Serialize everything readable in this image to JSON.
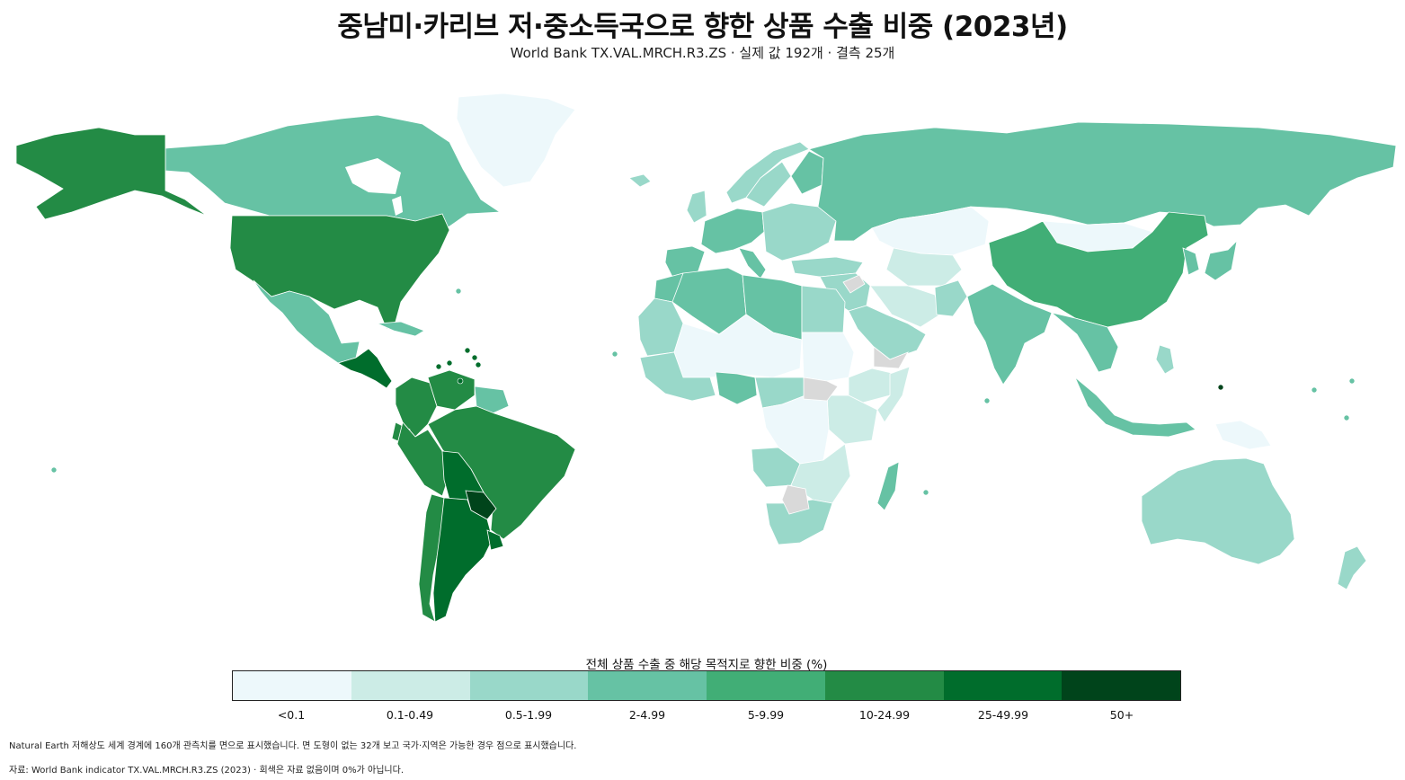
{
  "title": "중남미·카리브 저·중소득국으로 향한 상품 수출 비중 (2023년)",
  "subtitle": "World Bank TX.VAL.MRCH.R3.ZS · 실제 값 192개 · 결측 25개",
  "legend": {
    "title": "전체 상품 수출 중 해당 목적지로 향한 비중 (%)",
    "bins": [
      {
        "label": "<0.1",
        "color": "#edf8fb"
      },
      {
        "label": "0.1-0.49",
        "color": "#ccece6"
      },
      {
        "label": "0.5-1.99",
        "color": "#99d8c9"
      },
      {
        "label": "2-4.99",
        "color": "#66c2a4"
      },
      {
        "label": "5-9.99",
        "color": "#41ae76"
      },
      {
        "label": "10-24.99",
        "color": "#238b45"
      },
      {
        "label": "25-49.99",
        "color": "#006d2c"
      },
      {
        "label": "50+",
        "color": "#00441b"
      }
    ],
    "missing_color": "#d9d9d9"
  },
  "footnote_1": "Natural Earth 저해상도 세계 경계에 160개 관측치를 면으로 표시했습니다. 면 도형이 없는 32개 보고 국가·지역은 가능한 경우 점으로 표시했습니다.",
  "footnote_2": "자료: World Bank indicator TX.VAL.MRCH.R3.ZS (2023) · 회색은 자료 없음이며 0%가 아닙니다.",
  "map": {
    "projection": "equirectangular",
    "regions": [
      {
        "name": "Alaska (USA)",
        "bin": 5
      },
      {
        "name": "Canada",
        "bin": 3
      },
      {
        "name": "Greenland",
        "bin": 0
      },
      {
        "name": "United States",
        "bin": 5
      },
      {
        "name": "Mexico",
        "bin": 3
      },
      {
        "name": "Central America",
        "bin": 6
      },
      {
        "name": "Cuba",
        "bin": 3
      },
      {
        "name": "Colombia",
        "bin": 5
      },
      {
        "name": "Venezuela",
        "bin": 5
      },
      {
        "name": "Guianas",
        "bin": 3
      },
      {
        "name": "Ecuador",
        "bin": 5
      },
      {
        "name": "Peru",
        "bin": 5
      },
      {
        "name": "Brazil",
        "bin": 5
      },
      {
        "name": "Bolivia",
        "bin": 6
      },
      {
        "name": "Paraguay",
        "bin": 7
      },
      {
        "name": "Chile",
        "bin": 5
      },
      {
        "name": "Argentina",
        "bin": 6
      },
      {
        "name": "Uruguay",
        "bin": 6
      },
      {
        "name": "Iceland",
        "bin": 2
      },
      {
        "name": "Norway",
        "bin": 2
      },
      {
        "name": "Sweden",
        "bin": 2
      },
      {
        "name": "Finland",
        "bin": 3
      },
      {
        "name": "United Kingdom",
        "bin": 2
      },
      {
        "name": "Western Europe",
        "bin": 3
      },
      {
        "name": "Iberia",
        "bin": 3
      },
      {
        "name": "Italy",
        "bin": 3
      },
      {
        "name": "Eastern Europe",
        "bin": 2
      },
      {
        "name": "Russia",
        "bin": 3
      },
      {
        "name": "Kazakhstan",
        "bin": 0
      },
      {
        "name": "Mongolia",
        "bin": 0
      },
      {
        "name": "China",
        "bin": 4
      },
      {
        "name": "Korea",
        "bin": 3
      },
      {
        "name": "Japan",
        "bin": 3
      },
      {
        "name": "Turkey",
        "bin": 2
      },
      {
        "name": "Central Asia",
        "bin": 1
      },
      {
        "name": "Middle East",
        "bin": 2
      },
      {
        "name": "Arabian Peninsula",
        "bin": 2
      },
      {
        "name": "Iran",
        "bin": 1
      },
      {
        "name": "Pakistan",
        "bin": 2
      },
      {
        "name": "India",
        "bin": 3
      },
      {
        "name": "Southeast Asia",
        "bin": 3
      },
      {
        "name": "Indonesia",
        "bin": 3
      },
      {
        "name": "Papua New Guinea",
        "bin": 0
      },
      {
        "name": "Philippines",
        "bin": 2
      },
      {
        "name": "Australia",
        "bin": 2
      },
      {
        "name": "New Zealand",
        "bin": 2
      },
      {
        "name": "Morocco",
        "bin": 3
      },
      {
        "name": "Algeria",
        "bin": 3
      },
      {
        "name": "Libya",
        "bin": 3
      },
      {
        "name": "Egypt",
        "bin": 2
      },
      {
        "name": "Mauritania",
        "bin": 2
      },
      {
        "name": "Sahel",
        "bin": 0
      },
      {
        "name": "Sudan",
        "bin": 0
      },
      {
        "name": "West Africa coast",
        "bin": 2
      },
      {
        "name": "Nigeria",
        "bin": 3
      },
      {
        "name": "Central Africa",
        "bin": 2
      },
      {
        "name": "Ethiopia",
        "bin": 1
      },
      {
        "name": "East Africa",
        "bin": 1
      },
      {
        "name": "DR Congo",
        "bin": 0
      },
      {
        "name": "Angola",
        "bin": 2
      },
      {
        "name": "Southern Africa",
        "bin": 1
      },
      {
        "name": "South Africa",
        "bin": 2
      },
      {
        "name": "Madagascar",
        "bin": 3
      },
      {
        "name": "Somalia",
        "bin": 1
      },
      {
        "name": "Yemen",
        "bin": -1
      },
      {
        "name": "South Sudan",
        "bin": -1
      },
      {
        "name": "Botswana",
        "bin": -1
      },
      {
        "name": "Syria",
        "bin": -1
      }
    ],
    "points": [
      {
        "name": "Caribbean islands",
        "bin": 6
      },
      {
        "name": "Guam",
        "bin": 7
      },
      {
        "name": "Pacific islands",
        "bin": 3
      }
    ]
  }
}
